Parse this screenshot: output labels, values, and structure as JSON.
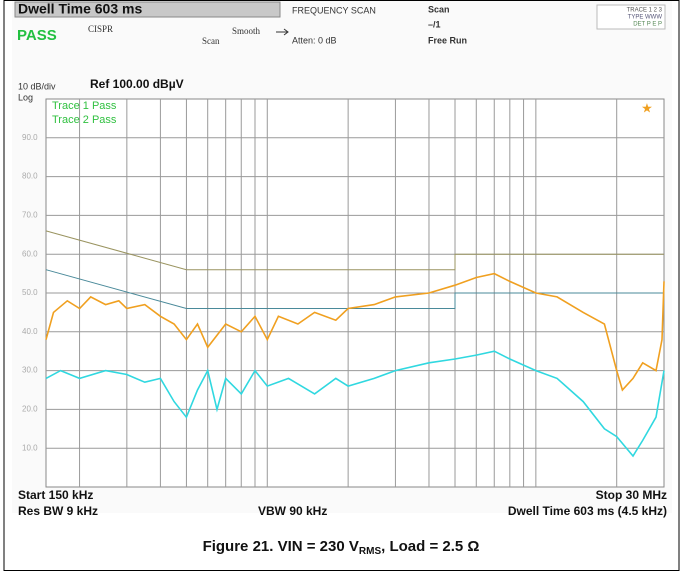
{
  "header": {
    "dwell": "Dwell Time 603 ms",
    "status": "PASS",
    "cispr": "CISPR",
    "smooth": "Smooth",
    "scan_mode": "Scan",
    "freq_scan": "FREQUENCY SCAN",
    "atten": "Atten: 0 dB",
    "scan": "Scan",
    "scan_count": "–/1",
    "run": "Free Run",
    "trace_row": "TRACE 1 2 3",
    "type_row": "TYPE WWW",
    "det_row": "DET P E P"
  },
  "chart_data": {
    "type": "line",
    "scale_label": "10 dB/div",
    "ref_label": "Ref 100.00 dBµV",
    "log_label": "Log",
    "annotations": [
      "Trace 1 Pass",
      "Trace 2 Pass"
    ],
    "xscale": "log",
    "xlim": [
      0.15,
      30
    ],
    "ylim": [
      0,
      100
    ],
    "x_grid": [
      0.2,
      0.3,
      0.4,
      0.5,
      0.6,
      0.7,
      0.8,
      0.9,
      1,
      2,
      3,
      4,
      5,
      6,
      7,
      8,
      9,
      10,
      20
    ],
    "yticks": [
      {
        "value": 10,
        "label": "10.0"
      },
      {
        "value": 20,
        "label": "20.0"
      },
      {
        "value": 30,
        "label": "30.0"
      },
      {
        "value": 40,
        "label": "40.0"
      },
      {
        "value": 50,
        "label": "50.0"
      },
      {
        "value": 60,
        "label": "60.0"
      },
      {
        "value": 70,
        "label": "70.0"
      },
      {
        "value": 80,
        "label": "80.0"
      },
      {
        "value": 90,
        "label": "90.0"
      }
    ],
    "limit_lines": [
      {
        "color": "#9a9460",
        "x": [
          0.15,
          0.5,
          5,
          5,
          30
        ],
        "values": [
          66,
          56,
          56,
          60,
          60
        ]
      },
      {
        "color": "#4a8a9a",
        "x": [
          0.15,
          0.5,
          5,
          5,
          30
        ],
        "values": [
          56,
          46,
          46,
          50,
          50
        ]
      }
    ],
    "series": [
      {
        "color": "#f0a020",
        "x": [
          0.15,
          0.16,
          0.18,
          0.2,
          0.22,
          0.25,
          0.28,
          0.3,
          0.35,
          0.4,
          0.45,
          0.5,
          0.55,
          0.6,
          0.7,
          0.8,
          0.9,
          1,
          1.1,
          1.3,
          1.5,
          1.8,
          2,
          2.5,
          3,
          4,
          5,
          6,
          7,
          8,
          10,
          12,
          15,
          18,
          20,
          21,
          23,
          25,
          28,
          29.5,
          30
        ],
        "values": [
          38,
          45,
          48,
          46,
          49,
          47,
          48,
          46,
          47,
          44,
          42,
          38,
          42,
          36,
          42,
          40,
          44,
          38,
          44,
          42,
          45,
          43,
          46,
          47,
          49,
          50,
          52,
          54,
          55,
          53,
          50,
          49,
          45,
          42,
          30,
          25,
          28,
          32,
          30,
          38,
          53
        ]
      },
      {
        "color": "#30d8e0",
        "x": [
          0.15,
          0.17,
          0.2,
          0.25,
          0.3,
          0.35,
          0.4,
          0.45,
          0.5,
          0.55,
          0.6,
          0.65,
          0.7,
          0.8,
          0.9,
          1,
          1.2,
          1.5,
          1.8,
          2,
          2.5,
          3,
          4,
          5,
          6,
          7,
          8,
          10,
          12,
          15,
          18,
          20,
          23,
          25,
          28,
          30
        ],
        "values": [
          28,
          30,
          28,
          30,
          29,
          27,
          28,
          22,
          18,
          25,
          30,
          20,
          28,
          24,
          30,
          26,
          28,
          24,
          28,
          26,
          28,
          30,
          32,
          33,
          34,
          35,
          33,
          30,
          28,
          22,
          15,
          13,
          8,
          12,
          18,
          30
        ]
      }
    ],
    "start_label": "Start 150 kHz",
    "stop_label": "Stop 30 MHz",
    "rbw_label": "Res BW 9 kHz",
    "vbw_label": "VBW 90 kHz",
    "dwell_label": "Dwell Time 603 ms (4.5 kHz)"
  },
  "caption": {
    "main": "Figure 21. VIN = 230 V",
    "sub": "RMS",
    "rest": ", Load = 2.5 Ω"
  }
}
